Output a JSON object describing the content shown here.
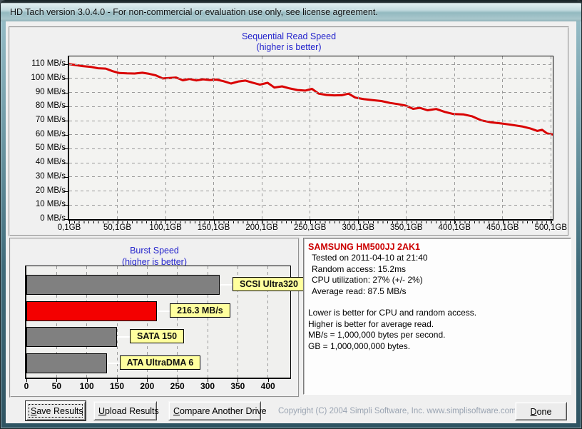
{
  "window": {
    "title": "HD Tach version 3.0.4.0  - For non-commercial or evaluation use only, see license agreement."
  },
  "seq": {
    "title": "Sequential Read Speed",
    "subtitle": "(higher is better)"
  },
  "burst": {
    "title": "Burst Speed",
    "subtitle": "(higher is better)"
  },
  "info": {
    "drive": "SAMSUNG HM500JJ 2AK1",
    "details": [
      "Tested on 2011-04-10 at 21:40",
      "Random access: 15.2ms",
      "CPU utilization: 27% (+/- 2%)",
      "Average read: 87.5 MB/s"
    ],
    "notes": [
      "Lower is better for CPU and random access.",
      "Higher is better for average read.",
      "MB/s = 1,000,000 bytes per second.",
      "GB = 1,000,000,000 bytes."
    ]
  },
  "footer": {
    "save": {
      "pre": "",
      "key": "S",
      "post": "ave Results"
    },
    "upload": {
      "pre": "",
      "key": "U",
      "post": "pload Results"
    },
    "compare": {
      "pre": "",
      "key": "C",
      "post": "ompare Another Drive"
    },
    "done": {
      "pre": "",
      "key": "D",
      "post": "one"
    },
    "copyright": "Copyright (C) 2004 Simpli Software, Inc. www.simplisoftware.com"
  },
  "colors": {
    "line_red": "#d90000",
    "bar_red": "#f40000",
    "bar_gray": "#808080",
    "label_yellow": "#ffff9e",
    "title_blue": "#2222cc"
  },
  "chart_data": [
    {
      "type": "line",
      "title": "Sequential Read Speed",
      "subtitle": "(higher is better)",
      "ylabel": "MB/s",
      "xlabel": "GB",
      "xlim": [
        0,
        502
      ],
      "ylim": [
        0,
        115.7
      ],
      "grid": true,
      "y_tick_values": [
        110,
        100,
        90,
        80,
        70,
        60,
        50,
        40,
        30,
        20,
        10,
        0
      ],
      "y_tick_labels": [
        "110 MB/s",
        "100 MB/s",
        "90 MB/s",
        "80 MB/s",
        "70 MB/s",
        "60 MB/s",
        "50 MB/s",
        "40 MB/s",
        "30 MB/s",
        "20 MB/s",
        "10 MB/s",
        "0 MB/s"
      ],
      "x_tick_values": [
        0,
        50,
        100,
        150,
        200,
        250,
        300,
        350,
        400,
        450,
        500
      ],
      "x_tick_labels": [
        "0,1GB",
        "50,1GB",
        "100,1GB",
        "150,1GB",
        "200,1GB",
        "250,1GB",
        "300,1GB",
        "350,1GB",
        "400,1GB",
        "450,1GB",
        "500,1GB"
      ],
      "x_grid": [
        50,
        100,
        150,
        200,
        250,
        300,
        350,
        400,
        450,
        500
      ],
      "y_grid": [
        10,
        20,
        30,
        40,
        50,
        60,
        70,
        80,
        90,
        100,
        110
      ],
      "points": [
        [
          0,
          110.2
        ],
        [
          6,
          109.6
        ],
        [
          14,
          108.8
        ],
        [
          22,
          108.3
        ],
        [
          30,
          107.3
        ],
        [
          38,
          107.0
        ],
        [
          45,
          105.2
        ],
        [
          52,
          103.9
        ],
        [
          60,
          103.6
        ],
        [
          68,
          103.5
        ],
        [
          76,
          104.1
        ],
        [
          83,
          103.3
        ],
        [
          90,
          102.2
        ],
        [
          97,
          100.0
        ],
        [
          104,
          100.3
        ],
        [
          111,
          100.7
        ],
        [
          118,
          98.7
        ],
        [
          125,
          99.6
        ],
        [
          132,
          98.6
        ],
        [
          139,
          99.4
        ],
        [
          146,
          98.9
        ],
        [
          153,
          99.2
        ],
        [
          160,
          98.1
        ],
        [
          168,
          96.4
        ],
        [
          176,
          97.9
        ],
        [
          183,
          98.5
        ],
        [
          190,
          97.1
        ],
        [
          198,
          95.6
        ],
        [
          206,
          96.9
        ],
        [
          213,
          93.6
        ],
        [
          221,
          94.4
        ],
        [
          229,
          92.9
        ],
        [
          237,
          91.8
        ],
        [
          245,
          91.4
        ],
        [
          252,
          92.6
        ],
        [
          259,
          89.2
        ],
        [
          267,
          88.3
        ],
        [
          275,
          88.0
        ],
        [
          283,
          88.1
        ],
        [
          290,
          89.2
        ],
        [
          297,
          86.4
        ],
        [
          306,
          85.3
        ],
        [
          315,
          84.6
        ],
        [
          324,
          84.0
        ],
        [
          333,
          82.6
        ],
        [
          341,
          81.8
        ],
        [
          349,
          80.8
        ],
        [
          357,
          78.4
        ],
        [
          364,
          79.1
        ],
        [
          372,
          77.4
        ],
        [
          381,
          78.3
        ],
        [
          390,
          76.2
        ],
        [
          399,
          74.7
        ],
        [
          409,
          74.5
        ],
        [
          418,
          73.2
        ],
        [
          428,
          70.2
        ],
        [
          438,
          68.8
        ],
        [
          449,
          68.0
        ],
        [
          459,
          67.1
        ],
        [
          470,
          65.9
        ],
        [
          479,
          64.4
        ],
        [
          486,
          62.7
        ],
        [
          491,
          63.5
        ],
        [
          496,
          61.0
        ],
        [
          502,
          60.2
        ]
      ]
    },
    {
      "type": "bar",
      "title": "Burst Speed",
      "subtitle": "(higher is better)",
      "xlim": [
        0,
        437
      ],
      "x_tick_values": [
        0,
        50,
        100,
        150,
        200,
        250,
        300,
        350,
        400
      ],
      "x_tick_labels": [
        "0",
        "50",
        "100",
        "150",
        "200",
        "250",
        "300",
        "350",
        "400"
      ],
      "x_grid": [
        50,
        100,
        150,
        200,
        250,
        300,
        350,
        400
      ],
      "bars": [
        {
          "label": "SCSI Ultra320",
          "value": 320,
          "color": "#808080"
        },
        {
          "label": "216.3 MB/s",
          "value": 216.3,
          "color": "#f40000"
        },
        {
          "label": "SATA 150",
          "value": 150,
          "color": "#808080"
        },
        {
          "label": "ATA UltraDMA 6",
          "value": 133,
          "color": "#808080"
        }
      ]
    }
  ]
}
